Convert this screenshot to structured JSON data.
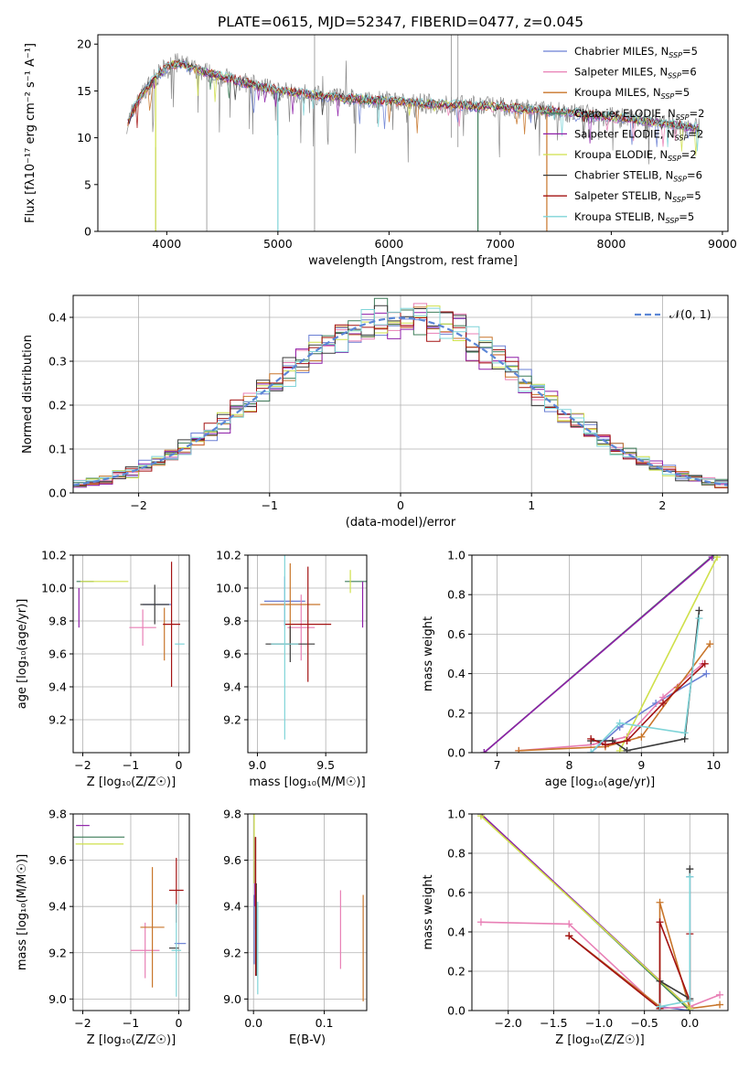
{
  "colors": [
    "#6a7fd4",
    "#e87fb5",
    "#c8752a",
    "#3e7d5a",
    "#8e1fa8",
    "#cfe04a",
    "#3a3a3a",
    "#a31212",
    "#7fd4d8"
  ],
  "chart_data": [
    {
      "id": "spectrum",
      "type": "line",
      "title": "PLATE=0615, MJD=52347, FIBERID=0477, z=0.045",
      "xlabel": "wavelength [Angstrom, rest frame]",
      "ylabel": "Flux [fλ10⁻¹⁷ erg cm⁻² s⁻¹ A⁻¹]",
      "xlim": [
        3380,
        9050
      ],
      "ylim": [
        0,
        21
      ],
      "xticks": [
        4000,
        5000,
        6000,
        7000,
        8000,
        9000
      ],
      "yticks": [
        0,
        5,
        10,
        15,
        20
      ],
      "legend_position": "top-right",
      "legend": [
        {
          "text": "Chabrier MILES, N",
          "sub": "SSP",
          "suffix": "=5"
        },
        {
          "text": "Salpeter MILES, N",
          "sub": "SSP",
          "suffix": "=6"
        },
        {
          "text": "Kroupa MILES, N",
          "sub": "SSP",
          "suffix": "=5"
        },
        {
          "text": "Chabrier ELODIE, N",
          "sub": "SSP",
          "suffix": "=2"
        },
        {
          "text": "Salpeter ELODIE, N",
          "sub": "SSP",
          "suffix": "=2"
        },
        {
          "text": "Kroupa ELODIE, N",
          "sub": "SSP",
          "suffix": "=2"
        },
        {
          "text": "Chabrier STELIB, N",
          "sub": "SSP",
          "suffix": "=6"
        },
        {
          "text": "Salpeter STELIB, N",
          "sub": "SSP",
          "suffix": "=5"
        },
        {
          "text": "Kroupa STELIB, N",
          "sub": "SSP",
          "suffix": "=5"
        }
      ],
      "continuum": {
        "x": [
          3650,
          3700,
          3800,
          3900,
          4000,
          4100,
          4200,
          4400,
          4600,
          4800,
          5000,
          5300,
          5600,
          6000,
          6500,
          7000,
          7500,
          8000,
          8500,
          8800
        ],
        "y": [
          11.5,
          13,
          15,
          16.5,
          17.5,
          18,
          17.6,
          16.8,
          16.2,
          15.6,
          15,
          14.6,
          14.2,
          13.9,
          13.5,
          13.3,
          12.8,
          12.2,
          11.5,
          11
        ]
      }
    },
    {
      "id": "residuals",
      "type": "histogram",
      "xlabel": "(data-model)/error",
      "ylabel": "Normed distribution",
      "xlim": [
        -2.5,
        2.5
      ],
      "ylim": [
        0,
        0.45
      ],
      "xticks": [
        -2,
        -1,
        0,
        1,
        2
      ],
      "yticks": [
        0.0,
        0.1,
        0.2,
        0.3,
        0.4
      ],
      "legend_position": "top-right",
      "reference_curve": {
        "label": "𝒩(0, 1)",
        "mean": 0,
        "sigma": 1
      }
    },
    {
      "id": "age-vs-z",
      "type": "errorbar",
      "xlabel": "Z [log₁₀(Z/Z☉)]",
      "ylabel": "age  [log₁₀(age/yr)]",
      "xlim": [
        -2.2,
        0.22
      ],
      "ylim": [
        9.0,
        10.2
      ],
      "xticks": [
        -2,
        -1,
        0
      ],
      "yticks": [
        9.2,
        9.4,
        9.6,
        9.8,
        10.0,
        10.2
      ],
      "points": [
        {
          "x": -0.45,
          "y": 9.9,
          "xe": 0.3,
          "ye": 0.0
        },
        {
          "x": -0.75,
          "y": 9.76,
          "xe": 0.28,
          "ye": 0.11
        },
        {
          "x": -0.3,
          "y": 9.72,
          "xe": 0.0,
          "ye": 0.16
        },
        {
          "x": -1.95,
          "y": 10.04,
          "xe": 0.18,
          "ye": 0.0
        },
        {
          "x": -2.08,
          "y": 9.88,
          "xe": 0.0,
          "ye": 0.12
        },
        {
          "x": -1.55,
          "y": 10.04,
          "xe": 0.5,
          "ye": 0.0
        },
        {
          "x": -0.5,
          "y": 9.9,
          "xe": 0.3,
          "ye": 0.12
        },
        {
          "x": -0.15,
          "y": 9.78,
          "xe": 0.18,
          "ye": 0.38
        },
        {
          "x": 0.02,
          "y": 9.66,
          "xe": 0.1,
          "ye": 0.0
        }
      ]
    },
    {
      "id": "age-vs-mass",
      "type": "errorbar",
      "xlabel": "mass [log₁₀(M/M☉)]",
      "ylabel": "",
      "xlim": [
        8.93,
        9.8
      ],
      "ylim": [
        9.0,
        10.2
      ],
      "xticks": [
        9.0,
        9.5
      ],
      "yticks": [
        9.2,
        9.4,
        9.6,
        9.8,
        10.0,
        10.2
      ],
      "points": [
        {
          "x": 9.2,
          "y": 9.92,
          "xe": 0.15,
          "ye": 0.15
        },
        {
          "x": 9.32,
          "y": 9.76,
          "xe": 0.1,
          "ye": 0.2
        },
        {
          "x": 9.24,
          "y": 9.9,
          "xe": 0.22,
          "ye": 0.25
        },
        {
          "x": 9.72,
          "y": 10.04,
          "xe": 0.08,
          "ye": 0.0
        },
        {
          "x": 9.77,
          "y": 9.9,
          "xe": 0.0,
          "ye": 0.14
        },
        {
          "x": 9.68,
          "y": 10.04,
          "xe": 0.0,
          "ye": 0.07
        },
        {
          "x": 9.24,
          "y": 9.66,
          "xe": 0.18,
          "ye": 0.11
        },
        {
          "x": 9.37,
          "y": 9.78,
          "xe": 0.17,
          "ye": 0.35
        },
        {
          "x": 9.2,
          "y": 9.66,
          "xe": 0.1,
          "ye": 0.58
        }
      ]
    },
    {
      "id": "massweight-vs-age",
      "type": "line",
      "xlabel": "age  [log₁₀(age/yr)]",
      "ylabel": "mass weight",
      "xlim": [
        6.65,
        10.2
      ],
      "ylim": [
        0,
        1
      ],
      "xticks": [
        7,
        8,
        9,
        10
      ],
      "yticks": [
        0.0,
        0.2,
        0.4,
        0.6,
        0.8,
        1.0
      ],
      "series": [
        {
          "x": [
            8.3,
            8.7,
            9.2,
            9.9
          ],
          "y": [
            0.0,
            0.13,
            0.25,
            0.4
          ]
        },
        {
          "x": [
            7.3,
            8.3,
            8.8,
            9.3,
            9.85
          ],
          "y": [
            0.01,
            0.04,
            0.08,
            0.28,
            0.45
          ]
        },
        {
          "x": [
            7.3,
            8.5,
            9.0,
            9.5,
            9.95
          ],
          "y": [
            0.01,
            0.03,
            0.08,
            0.33,
            0.55
          ]
        },
        {
          "x": [
            6.82,
            10.0
          ],
          "y": [
            0.0,
            1.0
          ]
        },
        {
          "x": [
            6.82,
            9.98
          ],
          "y": [
            0.0,
            0.99
          ]
        },
        {
          "x": [
            8.7,
            10.05
          ],
          "y": [
            0.01,
            0.99
          ]
        },
        {
          "x": [
            8.3,
            8.6,
            8.8,
            9.6,
            9.8
          ],
          "y": [
            0.06,
            0.06,
            0.01,
            0.07,
            0.72
          ]
        },
        {
          "x": [
            8.3,
            8.5,
            8.8,
            9.3,
            9.88
          ],
          "y": [
            0.07,
            0.04,
            0.06,
            0.25,
            0.45
          ]
        },
        {
          "x": [
            8.3,
            8.7,
            9.6,
            9.8
          ],
          "y": [
            0.0,
            0.15,
            0.1,
            0.68
          ]
        }
      ]
    },
    {
      "id": "mass-vs-z",
      "type": "errorbar",
      "xlabel": "Z [log₁₀(Z/Z☉)]",
      "ylabel": "mass [log₁₀(M/M☉)]",
      "xlim": [
        -2.2,
        0.22
      ],
      "ylim": [
        8.95,
        9.8
      ],
      "xticks": [
        -2,
        -1,
        0
      ],
      "yticks": [
        9.0,
        9.2,
        9.4,
        9.6,
        9.8
      ],
      "points": [
        {
          "x": 0.03,
          "y": 9.24,
          "xe": 0.12,
          "ye": 0.0
        },
        {
          "x": -0.7,
          "y": 9.21,
          "xe": 0.3,
          "ye": 0.12
        },
        {
          "x": -0.55,
          "y": 9.31,
          "xe": 0.25,
          "ye": 0.26
        },
        {
          "x": -1.68,
          "y": 9.7,
          "xe": 0.55,
          "ye": 0.0
        },
        {
          "x": -2.0,
          "y": 9.75,
          "xe": 0.14,
          "ye": 0.0
        },
        {
          "x": -1.65,
          "y": 9.67,
          "xe": 0.5,
          "ye": 0.0
        },
        {
          "x": -0.1,
          "y": 9.22,
          "xe": 0.1,
          "ye": 0.0
        },
        {
          "x": -0.05,
          "y": 9.47,
          "xe": 0.15,
          "ye": 0.14
        },
        {
          "x": -0.05,
          "y": 9.21,
          "xe": 0.1,
          "ye": 0.2
        }
      ]
    },
    {
      "id": "mass-vs-ebv",
      "type": "errorbar",
      "xlabel": "E(B-V)",
      "ylabel": "",
      "xlim": [
        -0.008,
        0.16
      ],
      "ylim": [
        8.95,
        9.8
      ],
      "xticks": [
        0.0,
        0.1
      ],
      "yticks": [
        9.0,
        9.2,
        9.4,
        9.6,
        9.8
      ],
      "points": [
        {
          "x": 0.001,
          "y": 9.3,
          "xe": 0.0,
          "ye": 0.15
        },
        {
          "x": 0.123,
          "y": 9.3,
          "xe": 0.0,
          "ye": 0.17
        },
        {
          "x": 0.155,
          "y": 9.22,
          "xe": 0.0,
          "ye": 0.23
        },
        {
          "x": 0.003,
          "y": 9.5,
          "xe": 0.0,
          "ye": 0.2
        },
        {
          "x": 0.002,
          "y": 9.55,
          "xe": 0.0,
          "ye": 0.15
        },
        {
          "x": 0.001,
          "y": 9.65,
          "xe": 0.0,
          "ye": 0.15
        },
        {
          "x": 0.004,
          "y": 9.3,
          "xe": 0.0,
          "ye": 0.2
        },
        {
          "x": 0.003,
          "y": 9.4,
          "xe": 0.0,
          "ye": 0.3
        },
        {
          "x": 0.006,
          "y": 9.22,
          "xe": 0.0,
          "ye": 0.2
        }
      ]
    },
    {
      "id": "massweight-vs-z",
      "type": "line",
      "xlabel": "Z [log₁₀(Z/Z☉)]",
      "ylabel": "mass weight",
      "xlim": [
        -2.4,
        0.42
      ],
      "ylim": [
        0,
        1
      ],
      "xticks": [
        -2.0,
        -1.5,
        -1.0,
        -0.5,
        0.0
      ],
      "yticks": [
        0.0,
        0.2,
        0.4,
        0.6,
        0.8,
        1.0
      ],
      "series": [
        {
          "x": [
            -1.33,
            -0.33,
            0.0,
            0.0
          ],
          "y": [
            0.38,
            0.02,
            0.0,
            0.68
          ]
        },
        {
          "x": [
            -2.3,
            -1.33,
            -0.33,
            0.0,
            0.33
          ],
          "y": [
            0.45,
            0.44,
            0.01,
            0.02,
            0.08
          ]
        },
        {
          "x": [
            -1.33,
            -0.33,
            -0.33,
            0.0,
            0.33
          ],
          "y": [
            0.38,
            0.02,
            0.55,
            0.01,
            0.03
          ]
        },
        {
          "x": [
            -2.3,
            0.0
          ],
          "y": [
            1.0,
            0.0
          ]
        },
        {
          "x": [
            -2.3,
            0.0
          ],
          "y": [
            1.0,
            0.01
          ]
        },
        {
          "x": [
            -2.3,
            0.0
          ],
          "y": [
            0.99,
            0.01
          ]
        },
        {
          "x": [
            -0.33,
            -0.33,
            0.0,
            0.0
          ],
          "y": [
            0.01,
            0.15,
            0.06,
            0.72
          ]
        },
        {
          "x": [
            -1.33,
            -0.33,
            -0.33,
            0.0,
            0.0
          ],
          "y": [
            0.38,
            0.01,
            0.45,
            0.05,
            0.39
          ]
        },
        {
          "x": [
            -0.33,
            0.0,
            0.0
          ],
          "y": [
            0.02,
            0.05,
            0.68
          ]
        }
      ]
    }
  ]
}
